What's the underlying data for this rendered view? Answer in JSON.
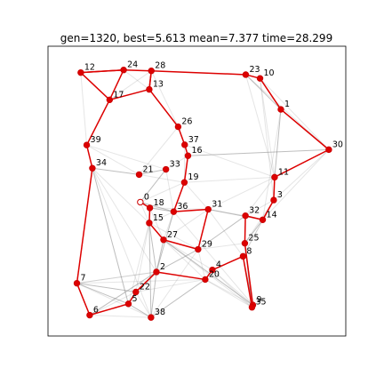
{
  "chart_data": {
    "type": "scatter",
    "title": "gen=1320, best=5.613 mean=7.377 time=28.299",
    "xlabel": "",
    "ylabel": "",
    "xlim": [
      0,
      1
    ],
    "ylim": [
      0,
      1
    ],
    "grid": false,
    "axes_ticks": false,
    "start_node": 0,
    "colors": {
      "best_tour": "#dd0000",
      "node_fill": "#dd0000",
      "node_edge": "#cc0000",
      "start_fill": "#ffffff",
      "population_edges": "#888888"
    },
    "nodes": [
      {
        "id": 0,
        "x": 0.31,
        "y": 0.462
      },
      {
        "id": 1,
        "x": 0.782,
        "y": 0.782
      },
      {
        "id": 2,
        "x": 0.364,
        "y": 0.221
      },
      {
        "id": 3,
        "x": 0.758,
        "y": 0.469
      },
      {
        "id": 4,
        "x": 0.552,
        "y": 0.228
      },
      {
        "id": 5,
        "x": 0.27,
        "y": 0.111
      },
      {
        "id": 6,
        "x": 0.14,
        "y": 0.072
      },
      {
        "id": 7,
        "x": 0.097,
        "y": 0.182
      },
      {
        "id": 8,
        "x": 0.655,
        "y": 0.275
      },
      {
        "id": 9,
        "x": 0.688,
        "y": 0.107
      },
      {
        "id": 10,
        "x": 0.712,
        "y": 0.889
      },
      {
        "id": 11,
        "x": 0.761,
        "y": 0.548
      },
      {
        "id": 12,
        "x": 0.11,
        "y": 0.909
      },
      {
        "id": 13,
        "x": 0.34,
        "y": 0.851
      },
      {
        "id": 14,
        "x": 0.721,
        "y": 0.401
      },
      {
        "id": 15,
        "x": 0.34,
        "y": 0.39
      },
      {
        "id": 16,
        "x": 0.47,
        "y": 0.622
      },
      {
        "id": 17,
        "x": 0.207,
        "y": 0.815
      },
      {
        "id": 18,
        "x": 0.342,
        "y": 0.442
      },
      {
        "id": 19,
        "x": 0.458,
        "y": 0.53
      },
      {
        "id": 20,
        "x": 0.528,
        "y": 0.195
      },
      {
        "id": 21,
        "x": 0.306,
        "y": 0.557
      },
      {
        "id": 22,
        "x": 0.295,
        "y": 0.152
      },
      {
        "id": 23,
        "x": 0.664,
        "y": 0.902
      },
      {
        "id": 24,
        "x": 0.254,
        "y": 0.918
      },
      {
        "id": 25,
        "x": 0.661,
        "y": 0.32
      },
      {
        "id": 26,
        "x": 0.437,
        "y": 0.722
      },
      {
        "id": 27,
        "x": 0.388,
        "y": 0.332
      },
      {
        "id": 28,
        "x": 0.347,
        "y": 0.915
      },
      {
        "id": 29,
        "x": 0.504,
        "y": 0.299
      },
      {
        "id": 30,
        "x": 0.943,
        "y": 0.643
      },
      {
        "id": 31,
        "x": 0.538,
        "y": 0.437
      },
      {
        "id": 32,
        "x": 0.663,
        "y": 0.415
      },
      {
        "id": 33,
        "x": 0.396,
        "y": 0.575
      },
      {
        "id": 34,
        "x": 0.149,
        "y": 0.579
      },
      {
        "id": 35,
        "x": 0.685,
        "y": 0.099
      },
      {
        "id": 36,
        "x": 0.422,
        "y": 0.429
      },
      {
        "id": 37,
        "x": 0.459,
        "y": 0.66
      },
      {
        "id": 38,
        "x": 0.346,
        "y": 0.064
      },
      {
        "id": 39,
        "x": 0.13,
        "y": 0.659
      }
    ],
    "best_tour": [
      0,
      18,
      15,
      27,
      29,
      31,
      36,
      19,
      16,
      37,
      26,
      13,
      28,
      24,
      12,
      17,
      39,
      34,
      7,
      6,
      5,
      22,
      2,
      20,
      4,
      8,
      35,
      9,
      25,
      32,
      14,
      3,
      11,
      30,
      1,
      10,
      23,
      28
    ],
    "best_tour_closing": [
      [
        28,
        13
      ],
      [
        13,
        17
      ],
      [
        17,
        24
      ],
      [
        24,
        12
      ]
    ],
    "population_edges": [
      [
        12,
        17
      ],
      [
        12,
        24
      ],
      [
        24,
        13
      ],
      [
        17,
        13
      ],
      [
        17,
        28
      ],
      [
        28,
        23
      ],
      [
        23,
        1
      ],
      [
        23,
        30
      ],
      [
        10,
        30
      ],
      [
        1,
        11
      ],
      [
        10,
        11
      ],
      [
        23,
        11
      ],
      [
        39,
        17
      ],
      [
        39,
        21
      ],
      [
        39,
        33
      ],
      [
        34,
        21
      ],
      [
        34,
        15
      ],
      [
        34,
        2
      ],
      [
        34,
        5
      ],
      [
        34,
        38
      ],
      [
        21,
        19
      ],
      [
        21,
        33
      ],
      [
        21,
        26
      ],
      [
        26,
        16
      ],
      [
        26,
        37
      ],
      [
        37,
        19
      ],
      [
        16,
        33
      ],
      [
        16,
        30
      ],
      [
        37,
        11
      ],
      [
        19,
        11
      ],
      [
        19,
        36
      ],
      [
        19,
        31
      ],
      [
        33,
        36
      ],
      [
        0,
        36
      ],
      [
        0,
        19
      ],
      [
        0,
        15
      ],
      [
        18,
        36
      ],
      [
        18,
        31
      ],
      [
        15,
        36
      ],
      [
        15,
        2
      ],
      [
        15,
        22
      ],
      [
        15,
        5
      ],
      [
        15,
        38
      ],
      [
        27,
        36
      ],
      [
        27,
        31
      ],
      [
        27,
        2
      ],
      [
        27,
        4
      ],
      [
        27,
        20
      ],
      [
        27,
        9
      ],
      [
        27,
        35
      ],
      [
        29,
        31
      ],
      [
        29,
        32
      ],
      [
        29,
        25
      ],
      [
        29,
        20
      ],
      [
        29,
        2
      ],
      [
        29,
        38
      ],
      [
        31,
        32
      ],
      [
        31,
        14
      ],
      [
        31,
        11
      ],
      [
        31,
        8
      ],
      [
        32,
        25
      ],
      [
        32,
        3
      ],
      [
        32,
        11
      ],
      [
        25,
        14
      ],
      [
        25,
        3
      ],
      [
        25,
        9
      ],
      [
        25,
        35
      ],
      [
        8,
        14
      ],
      [
        8,
        3
      ],
      [
        8,
        9
      ],
      [
        4,
        9
      ],
      [
        4,
        35
      ],
      [
        4,
        8
      ],
      [
        20,
        9
      ],
      [
        20,
        35
      ],
      [
        20,
        38
      ],
      [
        2,
        22
      ],
      [
        2,
        5
      ],
      [
        2,
        38
      ],
      [
        2,
        7
      ],
      [
        22,
        6
      ],
      [
        22,
        7
      ],
      [
        22,
        38
      ],
      [
        5,
        6
      ],
      [
        5,
        38
      ],
      [
        6,
        38
      ],
      [
        7,
        38
      ],
      [
        7,
        5
      ],
      [
        7,
        2
      ],
      [
        7,
        20
      ],
      [
        3,
        11
      ],
      [
        3,
        30
      ],
      [
        14,
        30
      ],
      [
        1,
        30
      ],
      [
        10,
        1
      ],
      [
        28,
        26
      ],
      [
        13,
        26
      ],
      [
        12,
        39
      ],
      [
        24,
        17
      ],
      [
        23,
        10
      ],
      [
        1,
        14
      ],
      [
        10,
        3
      ],
      [
        36,
        2
      ],
      [
        36,
        9
      ],
      [
        16,
        19
      ],
      [
        33,
        0
      ],
      [
        18,
        27
      ],
      [
        15,
        29
      ],
      [
        6,
        2
      ],
      [
        22,
        20
      ]
    ]
  }
}
